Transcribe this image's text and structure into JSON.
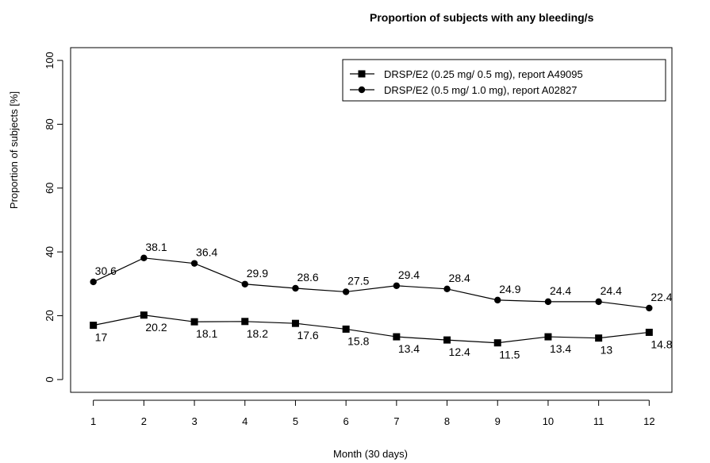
{
  "chart_data": {
    "type": "line",
    "title": "Proportion of subjects with any bleeding/s",
    "xlabel": "Month (30 days)",
    "ylabel": "Proportion of subjects [%]",
    "x": [
      1,
      2,
      3,
      4,
      5,
      6,
      7,
      8,
      9,
      10,
      11,
      12
    ],
    "x_tick_labels": [
      "1",
      "2",
      "3",
      "4",
      "5",
      "6",
      "7",
      "8",
      "9",
      "10",
      "11",
      "12"
    ],
    "xlim": [
      0.55,
      12.45
    ],
    "ylim": [
      -4,
      104
    ],
    "y_ticks": [
      0,
      20,
      40,
      60,
      80,
      100
    ],
    "y_tick_labels": [
      "0",
      "20",
      "40",
      "60",
      "80",
      "100"
    ],
    "grid": false,
    "legend_position": "top-right",
    "series": [
      {
        "name": "DRSP/E2 (0.25 mg/ 0.5 mg), report A49095",
        "marker": "square",
        "color": "#000000",
        "values": [
          17,
          20.2,
          18.1,
          18.2,
          17.6,
          15.8,
          13.4,
          12.4,
          11.5,
          13.4,
          13,
          14.8
        ],
        "labels": [
          "17",
          "20.2",
          "18.1",
          "18.2",
          "17.6",
          "15.8",
          "13.4",
          "12.4",
          "11.5",
          "13.4",
          "13",
          "14.8"
        ]
      },
      {
        "name": "DRSP/E2 (0.5 mg/ 1.0 mg), report A02827",
        "marker": "circle",
        "color": "#000000",
        "values": [
          30.6,
          38.1,
          36.4,
          29.9,
          28.6,
          27.5,
          29.4,
          28.4,
          24.9,
          24.4,
          24.4,
          22.4
        ],
        "labels": [
          "30.6",
          "38.1",
          "36.4",
          "29.9",
          "28.6",
          "27.5",
          "29.4",
          "28.4",
          "24.9",
          "24.4",
          "24.4",
          "22.4"
        ]
      }
    ]
  }
}
